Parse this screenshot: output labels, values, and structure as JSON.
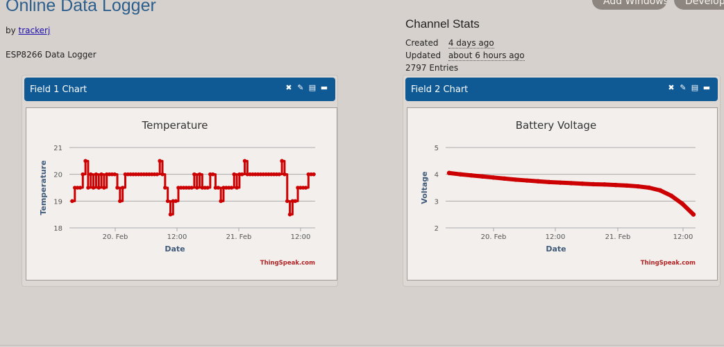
{
  "page": {
    "title": "Online Data Logger",
    "by_label": "by",
    "author": "trackerj",
    "description": "ESP8266 Data Logger"
  },
  "top_buttons": {
    "add_windows": "Add Windows",
    "developer": "Developer"
  },
  "stats": {
    "title": "Channel Stats",
    "created_label": "Created",
    "created_value": "4 days ago",
    "updated_label": "Updated",
    "updated_value": "about 6 hours ago",
    "entries": "2797 Entries"
  },
  "panels": [
    {
      "title": "Field 1 Chart"
    },
    {
      "title": "Field 2 Chart"
    }
  ],
  "panel_icons": [
    "close-icon",
    "edit-icon",
    "comment-icon",
    "minimize-icon"
  ],
  "chart_credit": "ThingSpeak.com",
  "chart_data": [
    {
      "type": "line",
      "title": "Temperature",
      "xlabel": "Date",
      "ylabel": "Temperature",
      "ylim": [
        18,
        21
      ],
      "yticks": [
        18,
        19,
        20,
        21
      ],
      "xticks": [
        "20. Feb",
        "12:00",
        "21. Feb",
        "12:00"
      ],
      "color": "#cc0000",
      "grid": true,
      "series": [
        {
          "values": [
            19,
            19.5,
            19.5,
            19.5,
            20,
            20.5,
            19.5,
            20,
            19.5,
            20,
            19.5,
            20,
            19.5,
            20,
            20,
            20,
            20,
            19.5,
            19,
            19.5,
            20,
            20,
            20,
            20,
            20,
            20,
            20,
            20,
            20,
            20,
            20,
            20,
            20,
            20.5,
            20,
            19.5,
            19,
            18.5,
            19,
            19,
            19.5,
            19.5,
            19.5,
            19.5,
            19.5,
            19.5,
            20,
            19.5,
            20,
            19.5,
            19.5,
            19.5,
            20,
            20,
            19.5,
            19.5,
            19,
            19.5,
            19.5,
            19.5,
            19.5,
            20,
            19.5,
            20,
            20,
            20.5,
            20,
            20,
            20,
            20,
            20,
            20,
            20,
            20,
            20,
            20,
            20,
            20,
            20,
            20.5,
            20,
            19,
            18.5,
            19,
            19,
            19.5,
            19.5,
            19.5,
            19.5,
            20,
            20,
            20
          ]
        }
      ]
    },
    {
      "type": "line",
      "title": "Battery Voltage",
      "xlabel": "Date",
      "ylabel": "Voltage",
      "ylim": [
        2,
        5
      ],
      "yticks": [
        2,
        3,
        4,
        5
      ],
      "xticks": [
        "20. Feb",
        "12:00",
        "21. Feb",
        "12:00"
      ],
      "color": "#cc0000",
      "grid": true,
      "series": [
        {
          "values": [
            4.05,
            4.0,
            3.96,
            3.92,
            3.88,
            3.84,
            3.8,
            3.77,
            3.74,
            3.71,
            3.69,
            3.67,
            3.65,
            3.63,
            3.62,
            3.6,
            3.58,
            3.55,
            3.5,
            3.4,
            3.2,
            2.9,
            2.5
          ]
        }
      ]
    }
  ]
}
